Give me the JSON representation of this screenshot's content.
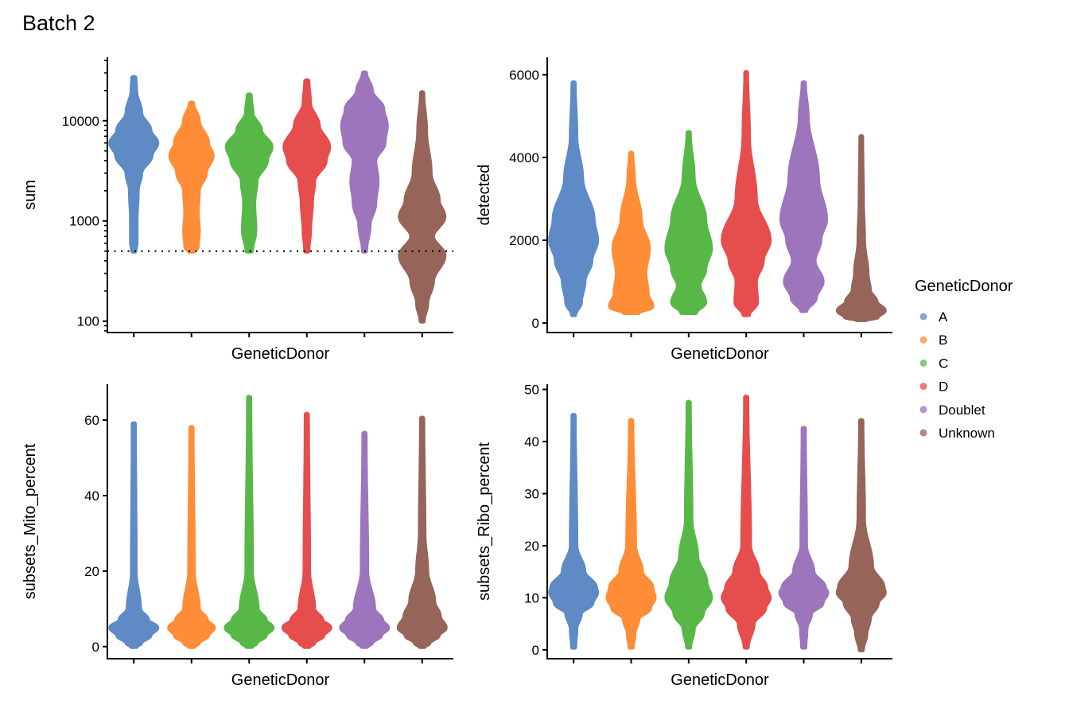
{
  "title": "Batch 2",
  "legend": {
    "title": "GeneticDonor",
    "items": [
      {
        "label": "A",
        "color": "#5E8BC6"
      },
      {
        "label": "B",
        "color": "#FF8C36"
      },
      {
        "label": "C",
        "color": "#57B848"
      },
      {
        "label": "D",
        "color": "#E64D4D"
      },
      {
        "label": "Doublet",
        "color": "#9D75BC"
      },
      {
        "label": "Unknown",
        "color": "#966458"
      }
    ]
  },
  "chart_data": [
    {
      "type": "violin",
      "xlabel": "GeneticDonor",
      "ylabel": "sum",
      "yscale": "log",
      "ylim": [
        77,
        43000
      ],
      "yticks": [
        100,
        1000,
        10000
      ],
      "ytick_labels": [
        "100",
        "1000",
        "10000"
      ],
      "hline": {
        "value": 500,
        "style": "dotted"
      },
      "categories": [
        "A",
        "B",
        "C",
        "D",
        "Doublet",
        "Unknown"
      ],
      "density": [
        [
          [
            27000,
            0.05
          ],
          [
            20000,
            0.08
          ],
          [
            12000,
            0.3
          ],
          [
            8000,
            0.7
          ],
          [
            6000,
            1.0
          ],
          [
            4500,
            0.75
          ],
          [
            3000,
            0.3
          ],
          [
            2000,
            0.15
          ],
          [
            1000,
            0.1
          ],
          [
            600,
            0.1
          ],
          [
            500,
            0.05
          ]
        ],
        [
          [
            15000,
            0.05
          ],
          [
            10000,
            0.3
          ],
          [
            6000,
            0.7
          ],
          [
            4500,
            0.9
          ],
          [
            3000,
            0.6
          ],
          [
            2000,
            0.3
          ],
          [
            1200,
            0.25
          ],
          [
            800,
            0.3
          ],
          [
            550,
            0.25
          ],
          [
            500,
            0.1
          ]
        ],
        [
          [
            18000,
            0.05
          ],
          [
            12000,
            0.12
          ],
          [
            8000,
            0.5
          ],
          [
            5500,
            0.95
          ],
          [
            4000,
            0.75
          ],
          [
            2500,
            0.3
          ],
          [
            1500,
            0.2
          ],
          [
            800,
            0.25
          ],
          [
            500,
            0.1
          ]
        ],
        [
          [
            25000,
            0.05
          ],
          [
            15000,
            0.12
          ],
          [
            9000,
            0.5
          ],
          [
            5500,
            0.95
          ],
          [
            4000,
            0.8
          ],
          [
            2500,
            0.3
          ],
          [
            1500,
            0.2
          ],
          [
            800,
            0.12
          ],
          [
            500,
            0.05
          ]
        ],
        [
          [
            30000,
            0.05
          ],
          [
            20000,
            0.3
          ],
          [
            13000,
            0.8
          ],
          [
            9000,
            0.95
          ],
          [
            6000,
            0.85
          ],
          [
            4000,
            0.45
          ],
          [
            2500,
            0.55
          ],
          [
            1500,
            0.45
          ],
          [
            900,
            0.2
          ],
          [
            500,
            0.05
          ]
        ],
        [
          [
            19000,
            0.03
          ],
          [
            8000,
            0.15
          ],
          [
            3000,
            0.35
          ],
          [
            1600,
            0.7
          ],
          [
            1100,
            0.95
          ],
          [
            700,
            0.45
          ],
          [
            450,
            0.95
          ],
          [
            250,
            0.45
          ],
          [
            150,
            0.2
          ],
          [
            100,
            0.05
          ]
        ]
      ]
    },
    {
      "type": "violin",
      "xlabel": "GeneticDonor",
      "ylabel": "detected",
      "yscale": "linear",
      "ylim": [
        -230,
        6420
      ],
      "yticks": [
        0,
        2000,
        4000,
        6000
      ],
      "ytick_labels": [
        "0",
        "2000",
        "4000",
        "6000"
      ],
      "categories": [
        "A",
        "B",
        "C",
        "D",
        "Doublet",
        "Unknown"
      ],
      "density": [
        [
          [
            5800,
            0.03
          ],
          [
            4500,
            0.1
          ],
          [
            3500,
            0.35
          ],
          [
            2500,
            0.85
          ],
          [
            2000,
            1.0
          ],
          [
            1500,
            0.75
          ],
          [
            1000,
            0.45
          ],
          [
            500,
            0.3
          ],
          [
            200,
            0.05
          ]
        ],
        [
          [
            4100,
            0.03
          ],
          [
            3500,
            0.1
          ],
          [
            2500,
            0.4
          ],
          [
            1800,
            0.75
          ],
          [
            1200,
            0.6
          ],
          [
            700,
            0.7
          ],
          [
            400,
            0.9
          ],
          [
            250,
            0.3
          ]
        ],
        [
          [
            4600,
            0.03
          ],
          [
            3500,
            0.2
          ],
          [
            2500,
            0.7
          ],
          [
            1800,
            0.95
          ],
          [
            1300,
            0.7
          ],
          [
            900,
            0.45
          ],
          [
            500,
            0.7
          ],
          [
            250,
            0.3
          ]
        ],
        [
          [
            6050,
            0.02
          ],
          [
            4500,
            0.1
          ],
          [
            3000,
            0.4
          ],
          [
            2000,
            1.0
          ],
          [
            1500,
            0.7
          ],
          [
            1000,
            0.4
          ],
          [
            500,
            0.45
          ],
          [
            200,
            0.1
          ]
        ],
        [
          [
            5800,
            0.03
          ],
          [
            5000,
            0.15
          ],
          [
            3500,
            0.6
          ],
          [
            2500,
            0.95
          ],
          [
            2000,
            0.7
          ],
          [
            1500,
            0.45
          ],
          [
            1000,
            0.8
          ],
          [
            600,
            0.5
          ],
          [
            300,
            0.1
          ]
        ],
        [
          [
            4500,
            0.02
          ],
          [
            3000,
            0.05
          ],
          [
            2000,
            0.1
          ],
          [
            1200,
            0.25
          ],
          [
            800,
            0.35
          ],
          [
            500,
            0.65
          ],
          [
            300,
            1.0
          ],
          [
            150,
            0.7
          ],
          [
            80,
            0.2
          ]
        ]
      ]
    },
    {
      "type": "violin",
      "xlabel": "GeneticDonor",
      "ylabel": "subsets_Mito_percent",
      "yscale": "linear",
      "ylim": [
        -3.2,
        69.5
      ],
      "yticks": [
        0,
        20,
        40,
        60
      ],
      "ytick_labels": [
        "0",
        "20",
        "40",
        "60"
      ],
      "categories": [
        "A",
        "B",
        "C",
        "D",
        "Doublet",
        "Unknown"
      ],
      "density": [
        [
          [
            59,
            0.03
          ],
          [
            20,
            0.06
          ],
          [
            10,
            0.25
          ],
          [
            7,
            0.6
          ],
          [
            5,
            1.0
          ],
          [
            3,
            0.7
          ],
          [
            1,
            0.3
          ],
          [
            0,
            0.1
          ]
        ],
        [
          [
            58,
            0.03
          ],
          [
            20,
            0.08
          ],
          [
            10,
            0.3
          ],
          [
            7,
            0.65
          ],
          [
            5,
            0.95
          ],
          [
            3,
            0.7
          ],
          [
            1,
            0.3
          ],
          [
            0,
            0.1
          ]
        ],
        [
          [
            66,
            0.03
          ],
          [
            20,
            0.1
          ],
          [
            10,
            0.35
          ],
          [
            7,
            0.7
          ],
          [
            5,
            1.0
          ],
          [
            3,
            0.7
          ],
          [
            1,
            0.3
          ],
          [
            0,
            0.1
          ]
        ],
        [
          [
            61.5,
            0.03
          ],
          [
            20,
            0.08
          ],
          [
            10,
            0.3
          ],
          [
            7,
            0.65
          ],
          [
            5,
            1.0
          ],
          [
            3,
            0.7
          ],
          [
            1,
            0.3
          ],
          [
            0,
            0.1
          ]
        ],
        [
          [
            56.5,
            0.03
          ],
          [
            20,
            0.1
          ],
          [
            10,
            0.4
          ],
          [
            7,
            0.75
          ],
          [
            5,
            1.0
          ],
          [
            3,
            0.7
          ],
          [
            1,
            0.3
          ],
          [
            0,
            0.1
          ]
        ],
        [
          [
            60.5,
            0.03
          ],
          [
            30,
            0.08
          ],
          [
            20,
            0.2
          ],
          [
            12,
            0.5
          ],
          [
            8,
            0.75
          ],
          [
            5,
            1.0
          ],
          [
            3,
            0.7
          ],
          [
            1,
            0.3
          ],
          [
            0,
            0.1
          ]
        ]
      ]
    },
    {
      "type": "violin",
      "xlabel": "GeneticDonor",
      "ylabel": "subsets_Ribo_percent",
      "yscale": "linear",
      "ylim": [
        -1.7,
        51
      ],
      "yticks": [
        0,
        10,
        20,
        30,
        40,
        50
      ],
      "ytick_labels": [
        "0",
        "10",
        "20",
        "30",
        "40",
        "50"
      ],
      "categories": [
        "A",
        "B",
        "C",
        "D",
        "Doublet",
        "Unknown"
      ],
      "density": [
        [
          [
            45,
            0.03
          ],
          [
            20,
            0.1
          ],
          [
            15,
            0.45
          ],
          [
            12,
            0.95
          ],
          [
            11,
            1.0
          ],
          [
            9,
            0.8
          ],
          [
            7,
            0.3
          ],
          [
            4,
            0.1
          ],
          [
            0.5,
            0.05
          ]
        ],
        [
          [
            44,
            0.03
          ],
          [
            20,
            0.15
          ],
          [
            15,
            0.45
          ],
          [
            12,
            0.9
          ],
          [
            10,
            1.0
          ],
          [
            8,
            0.8
          ],
          [
            6,
            0.3
          ],
          [
            3,
            0.12
          ],
          [
            0.5,
            0.05
          ]
        ],
        [
          [
            47.5,
            0.03
          ],
          [
            25,
            0.1
          ],
          [
            18,
            0.35
          ],
          [
            13,
            0.75
          ],
          [
            10,
            0.95
          ],
          [
            7,
            0.6
          ],
          [
            4,
            0.2
          ],
          [
            0.5,
            0.05
          ]
        ],
        [
          [
            48.5,
            0.03
          ],
          [
            20,
            0.15
          ],
          [
            15,
            0.5
          ],
          [
            12,
            0.85
          ],
          [
            10,
            1.0
          ],
          [
            8,
            0.8
          ],
          [
            5,
            0.3
          ],
          [
            0.5,
            0.05
          ]
        ],
        [
          [
            42.5,
            0.03
          ],
          [
            20,
            0.08
          ],
          [
            15,
            0.4
          ],
          [
            12,
            0.9
          ],
          [
            11,
            1.0
          ],
          [
            9,
            0.8
          ],
          [
            7,
            0.3
          ],
          [
            4,
            0.1
          ],
          [
            0.5,
            0.05
          ]
        ],
        [
          [
            44,
            0.03
          ],
          [
            25,
            0.1
          ],
          [
            16,
            0.45
          ],
          [
            12,
            0.95
          ],
          [
            11,
            1.0
          ],
          [
            9,
            0.7
          ],
          [
            6,
            0.35
          ],
          [
            3,
            0.2
          ],
          [
            0,
            0.05
          ]
        ]
      ]
    }
  ]
}
